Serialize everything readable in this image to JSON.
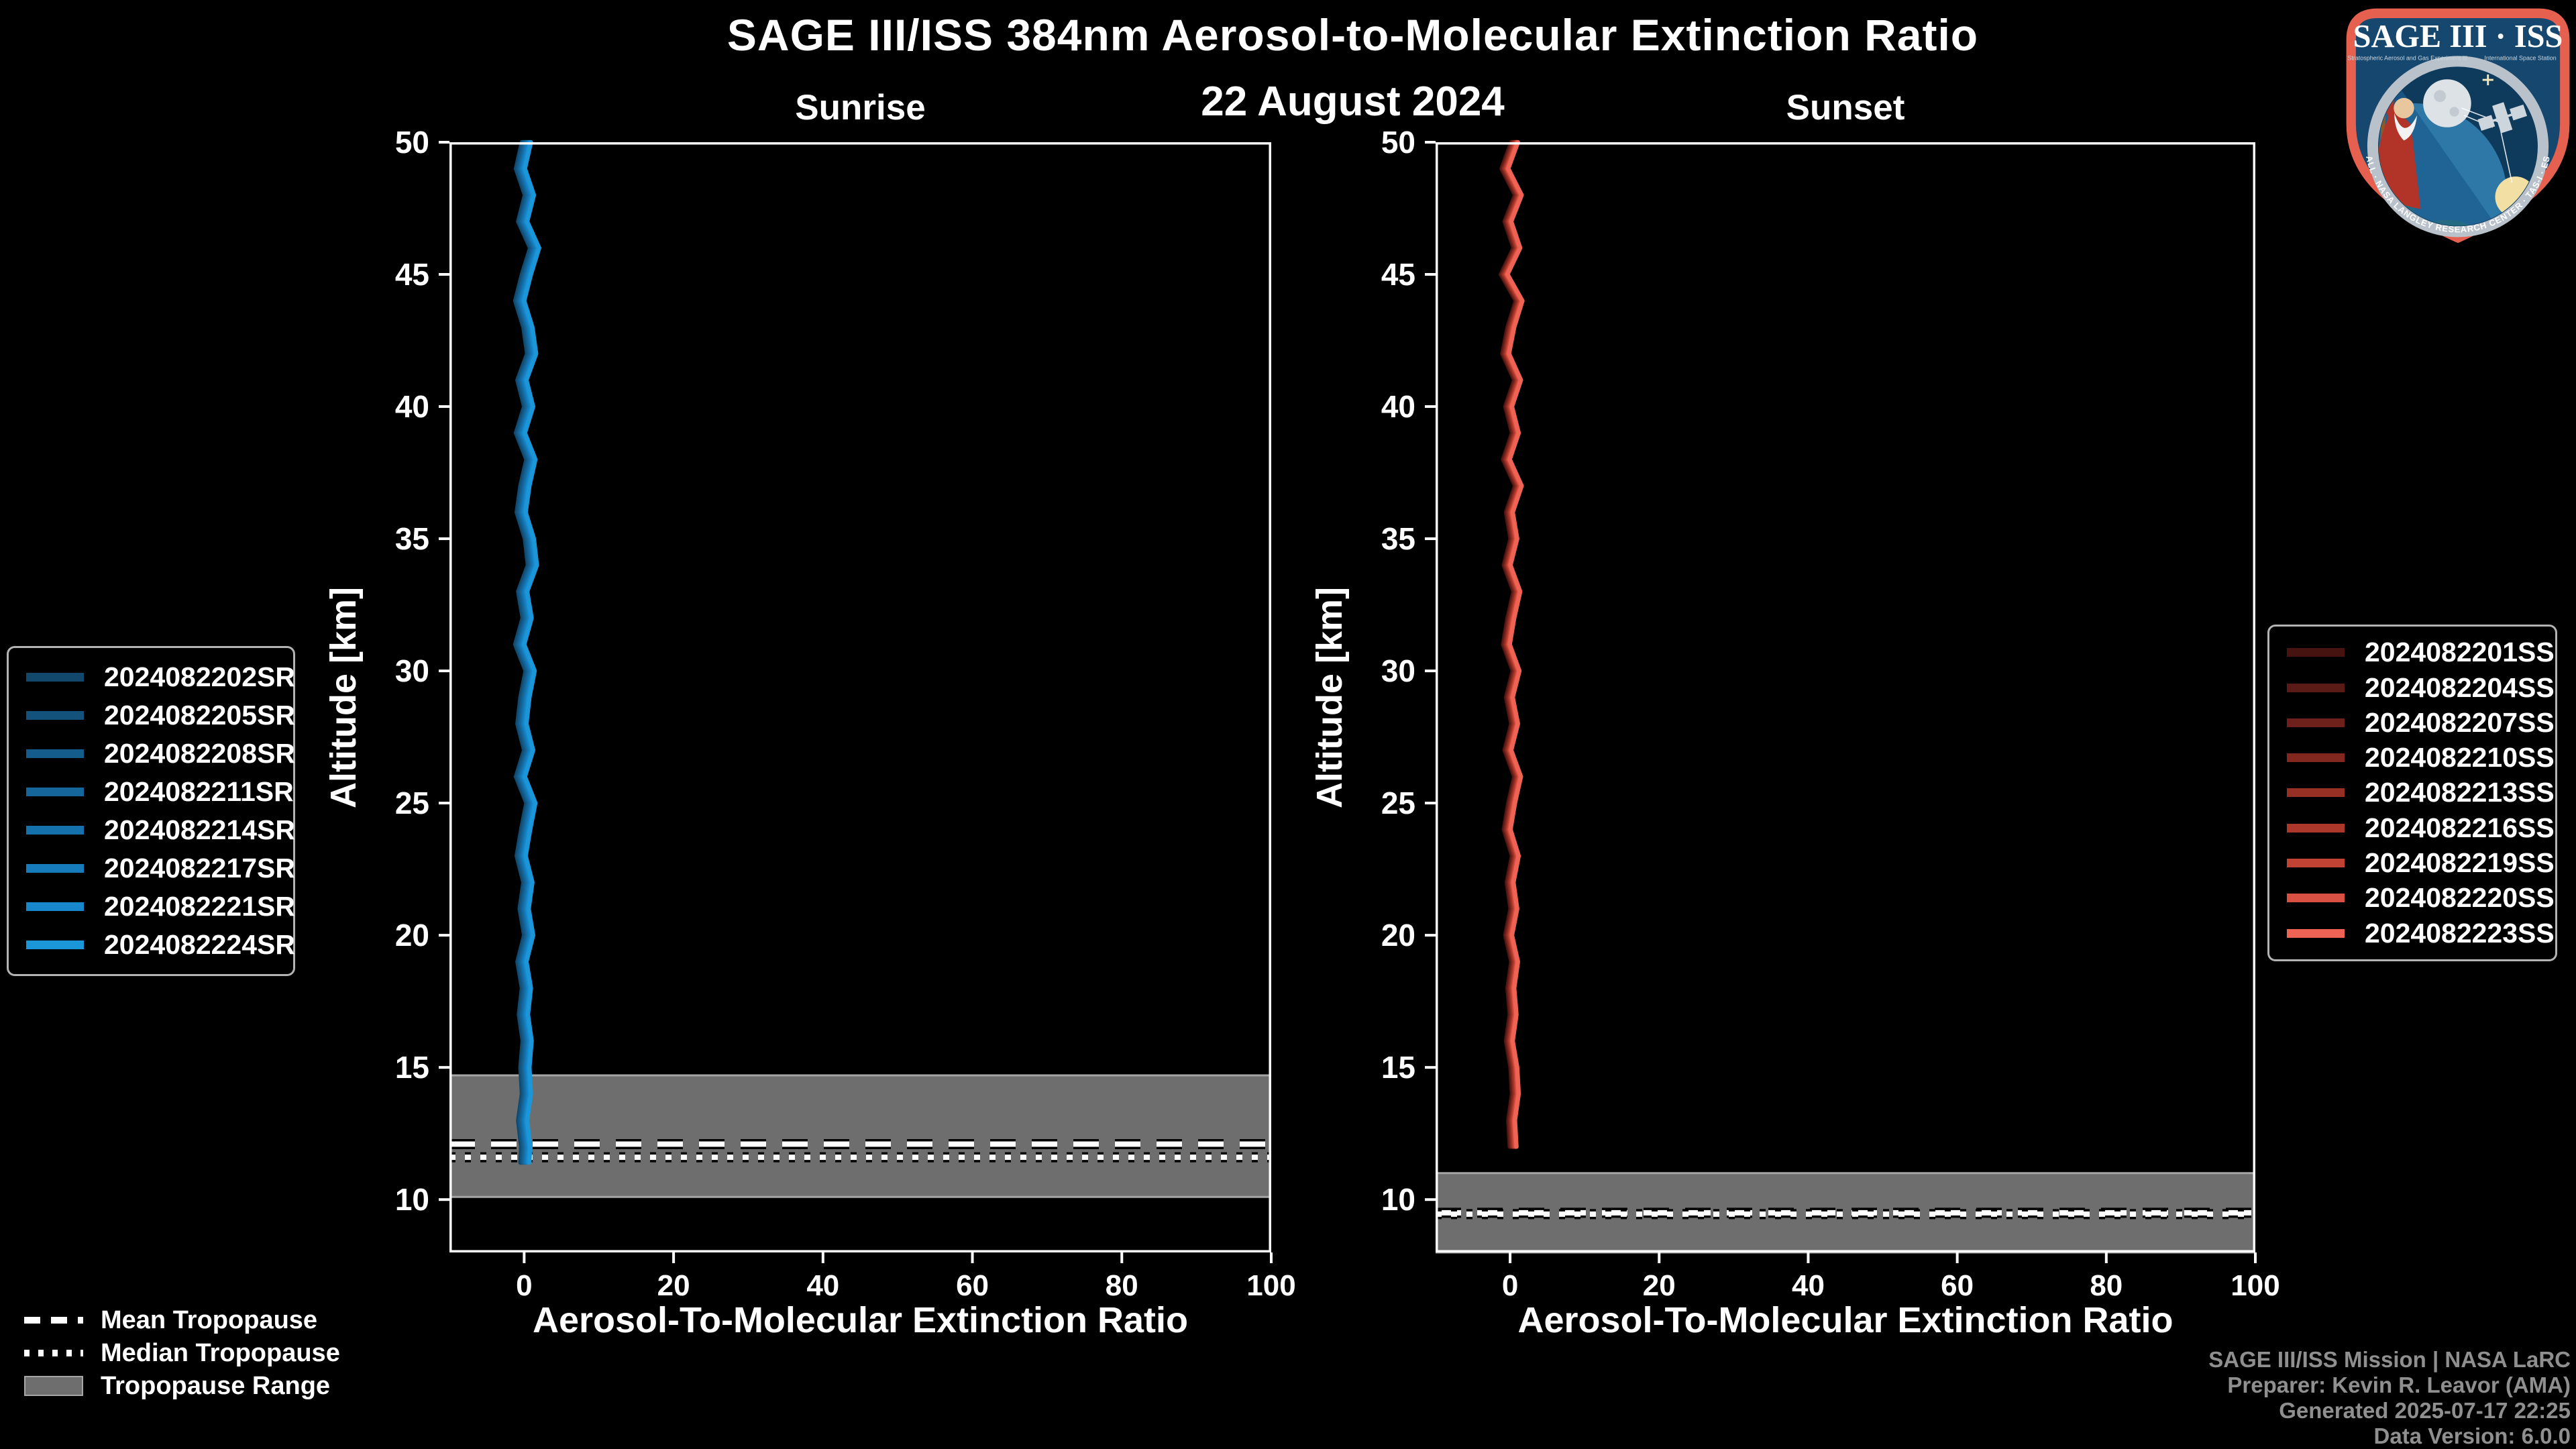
{
  "title": "SAGE III/ISS 384nm Aerosol-to-Molecular Extinction Ratio",
  "subtitle": "22 August 2024",
  "chart_data": [
    {
      "type": "line",
      "panel_title": "Sunrise",
      "xlabel": "Aerosol-To-Molecular Extinction Ratio",
      "ylabel": "Altitude [km]",
      "xlim": [
        -10,
        100
      ],
      "ylim": [
        8,
        50
      ],
      "xticks": [
        0,
        20,
        40,
        60,
        80,
        100
      ],
      "yticks": [
        10,
        15,
        20,
        25,
        30,
        35,
        40,
        45,
        50
      ],
      "grid": false,
      "legend_position": "outside-left",
      "series_x_spread": 1.2,
      "series": [
        {
          "name": "2024082202SR",
          "color": "#11486b"
        },
        {
          "name": "2024082205SR",
          "color": "#12527b"
        },
        {
          "name": "2024082208SR",
          "color": "#135c8b"
        },
        {
          "name": "2024082211SR",
          "color": "#14669b"
        },
        {
          "name": "2024082214SR",
          "color": "#1571ab"
        },
        {
          "name": "2024082217SR",
          "color": "#167cbb"
        },
        {
          "name": "2024082221SR",
          "color": "#1888cc"
        },
        {
          "name": "2024082224SR",
          "color": "#1b96d9"
        }
      ],
      "profile": {
        "altitude_km": [
          50,
          49,
          48,
          47,
          46,
          45,
          44,
          43,
          42,
          41,
          40,
          39,
          38,
          37,
          36,
          35,
          34,
          33,
          32,
          31,
          30,
          29,
          28,
          27,
          26,
          25,
          24,
          23,
          22,
          21,
          20,
          19,
          18,
          17,
          16,
          15,
          14,
          13,
          12,
          11.4
        ],
        "ratio": [
          0.3,
          -0.5,
          0.7,
          -0.2,
          1.4,
          0.3,
          -0.6,
          0.5,
          1.0,
          -0.3,
          0.6,
          -0.5,
          0.9,
          0.1,
          -0.4,
          0.7,
          1.1,
          -0.2,
          0.4,
          -0.6,
          0.8,
          0.1,
          -0.3,
          0.6,
          -0.5,
          0.9,
          0.2,
          -0.4,
          0.5,
          0.0,
          0.6,
          -0.3,
          0.3,
          -0.1,
          0.4,
          0.1,
          0.3,
          -0.2,
          0.2,
          0.1
        ]
      },
      "tropopause": {
        "mean_km": 12.1,
        "median_km": 11.6,
        "range_km": [
          10.1,
          14.7
        ]
      }
    },
    {
      "type": "line",
      "panel_title": "Sunset",
      "xlabel": "Aerosol-To-Molecular Extinction Ratio",
      "ylabel": "Altitude [km]",
      "xlim": [
        -10,
        100
      ],
      "ylim": [
        8,
        50
      ],
      "xticks": [
        0,
        20,
        40,
        60,
        80,
        100
      ],
      "yticks": [
        10,
        15,
        20,
        25,
        30,
        35,
        40,
        45,
        50
      ],
      "grid": false,
      "legend_position": "outside-right",
      "series_x_spread": 0.9,
      "series": [
        {
          "name": "2024082201SS",
          "color": "#471311"
        },
        {
          "name": "2024082204SS",
          "color": "#5a1a15"
        },
        {
          "name": "2024082207SS",
          "color": "#6e211a"
        },
        {
          "name": "2024082210SS",
          "color": "#82281f"
        },
        {
          "name": "2024082213SS",
          "color": "#963024"
        },
        {
          "name": "2024082216SS",
          "color": "#ab382a"
        },
        {
          "name": "2024082219SS",
          "color": "#c24233"
        },
        {
          "name": "2024082220SS",
          "color": "#d95142"
        },
        {
          "name": "2024082223SS",
          "color": "#ee6353"
        }
      ],
      "profile": {
        "altitude_km": [
          50,
          49,
          48,
          47,
          46,
          45,
          44,
          43,
          42,
          41,
          40,
          39,
          38,
          37,
          36,
          35,
          34,
          33,
          32,
          31,
          30,
          29,
          28,
          27,
          26,
          25,
          24,
          23,
          22,
          21,
          20,
          19,
          18,
          17,
          16,
          15,
          14,
          13,
          12
        ],
        "ratio": [
          0.6,
          -0.7,
          1.1,
          -0.3,
          0.9,
          -0.8,
          1.2,
          0.1,
          -0.6,
          1.0,
          -0.2,
          0.7,
          -0.5,
          1.1,
          -0.1,
          0.5,
          -0.4,
          0.9,
          0.1,
          -0.5,
          0.8,
          -0.1,
          0.6,
          -0.3,
          1.0,
          0.2,
          -0.4,
          0.7,
          0.0,
          0.5,
          -0.2,
          0.6,
          0.1,
          0.4,
          -0.1,
          0.5,
          0.7,
          0.2,
          0.4
        ]
      },
      "tropopause": {
        "mean_km": 9.5,
        "median_km": 9.45,
        "range_km": [
          8.0,
          11.0
        ]
      }
    }
  ],
  "tropopause_legend": {
    "items": [
      {
        "label": "Mean Tropopause",
        "style": "dashed"
      },
      {
        "label": "Median Tropopause",
        "style": "dotted"
      },
      {
        "label": "Tropopause Range",
        "style": "band"
      }
    ]
  },
  "attribution": {
    "lines": [
      "SAGE III/ISS Mission | NASA LaRC",
      "Preparer: Kevin R. Leavor (AMA)",
      "Generated 2025-07-17 22:25",
      "Data Version: 6.0.0"
    ]
  },
  "logo": {
    "title": "SAGE III · ISS",
    "subtitle_left": "Stratospheric Aerosol and Gas Experiment III",
    "subtitle_right": "International Space Station",
    "ring_text": "BALL · NASA LANGLEY RESEARCH CENTER · TAS-I · ESA"
  },
  "colors": {
    "background": "#000000",
    "text": "#ffffff",
    "attribution_text": "#8f8f8f",
    "tropopause_band": "#6e6e6e",
    "tropopause_band_edge": "#a6a6a6",
    "tropopause_line": "#ffffff",
    "legend_border": "#b3b3b3",
    "sunrise_line_visible": "#1b96d9",
    "sunset_line_visible": "#ee6353"
  }
}
